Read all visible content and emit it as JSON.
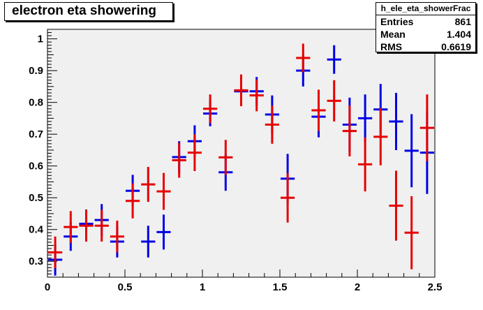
{
  "title": "electron eta showering",
  "stats": {
    "name": "h_ele_eta_showerFrac",
    "rows": [
      {
        "key": "Entries",
        "value": "861"
      },
      {
        "key": "Mean",
        "value": "1.404"
      },
      {
        "key": "RMS",
        "value": "0.6619"
      }
    ]
  },
  "colors": {
    "frame_fill": "#f0f0f0",
    "series_blue": "#0000e6",
    "series_red": "#e60000"
  },
  "chart_data": {
    "type": "scatter",
    "title": "electron eta showering",
    "xlabel": "",
    "ylabel": "",
    "xlim": [
      0,
      2.5
    ],
    "ylim": [
      0.25,
      1.03
    ],
    "x_ticks": [
      0,
      0.5,
      1,
      1.5,
      2,
      2.5
    ],
    "x_tick_labels": [
      "0",
      "0.5",
      "1",
      "1.5",
      "2",
      "2.5"
    ],
    "y_ticks": [
      0.3,
      0.4,
      0.5,
      0.6,
      0.7,
      0.8,
      0.9,
      1
    ],
    "y_tick_labels": [
      "0.3",
      "0.4",
      "0.5",
      "0.6",
      "0.7",
      "0.8",
      "0.9",
      "1"
    ],
    "grid": false,
    "series": [
      {
        "color": "#0000e6",
        "points": [
          {
            "x": 0.05,
            "y": 0.305,
            "xerr": 0.05,
            "yerr": 0.05
          },
          {
            "x": 0.15,
            "y": 0.378,
            "xerr": 0.05,
            "yerr": 0.045
          },
          {
            "x": 0.25,
            "y": 0.418,
            "xerr": 0.05,
            "yerr": 0.045
          },
          {
            "x": 0.35,
            "y": 0.43,
            "xerr": 0.05,
            "yerr": 0.05
          },
          {
            "x": 0.45,
            "y": 0.362,
            "xerr": 0.05,
            "yerr": 0.05
          },
          {
            "x": 0.55,
            "y": 0.522,
            "xerr": 0.05,
            "yerr": 0.05
          },
          {
            "x": 0.65,
            "y": 0.362,
            "xerr": 0.05,
            "yerr": 0.05
          },
          {
            "x": 0.75,
            "y": 0.392,
            "xerr": 0.05,
            "yerr": 0.055
          },
          {
            "x": 0.85,
            "y": 0.628,
            "xerr": 0.05,
            "yerr": 0.05
          },
          {
            "x": 0.95,
            "y": 0.678,
            "xerr": 0.05,
            "yerr": 0.05
          },
          {
            "x": 1.05,
            "y": 0.765,
            "xerr": 0.05,
            "yerr": 0.04
          },
          {
            "x": 1.15,
            "y": 0.58,
            "xerr": 0.05,
            "yerr": 0.058
          },
          {
            "x": 1.25,
            "y": 0.835,
            "xerr": 0.05,
            "yerr": 0.045
          },
          {
            "x": 1.35,
            "y": 0.835,
            "xerr": 0.05,
            "yerr": 0.045
          },
          {
            "x": 1.45,
            "y": 0.762,
            "xerr": 0.05,
            "yerr": 0.06
          },
          {
            "x": 1.55,
            "y": 0.56,
            "xerr": 0.05,
            "yerr": 0.078
          },
          {
            "x": 1.65,
            "y": 0.9,
            "xerr": 0.05,
            "yerr": 0.05
          },
          {
            "x": 1.75,
            "y": 0.755,
            "xerr": 0.05,
            "yerr": 0.065
          },
          {
            "x": 1.85,
            "y": 0.935,
            "xerr": 0.05,
            "yerr": 0.045
          },
          {
            "x": 1.95,
            "y": 0.73,
            "xerr": 0.05,
            "yerr": 0.085
          },
          {
            "x": 2.05,
            "y": 0.75,
            "xerr": 0.05,
            "yerr": 0.075
          },
          {
            "x": 2.15,
            "y": 0.778,
            "xerr": 0.05,
            "yerr": 0.08
          },
          {
            "x": 2.25,
            "y": 0.74,
            "xerr": 0.05,
            "yerr": 0.09
          },
          {
            "x": 2.35,
            "y": 0.648,
            "xerr": 0.05,
            "yerr": 0.115
          },
          {
            "x": 2.45,
            "y": 0.642,
            "xerr": 0.05,
            "yerr": 0.13
          }
        ]
      },
      {
        "color": "#e60000",
        "points": [
          {
            "x": 0.05,
            "y": 0.328,
            "xerr": 0.05,
            "yerr": 0.05
          },
          {
            "x": 0.15,
            "y": 0.408,
            "xerr": 0.05,
            "yerr": 0.05
          },
          {
            "x": 0.25,
            "y": 0.412,
            "xerr": 0.05,
            "yerr": 0.05
          },
          {
            "x": 0.35,
            "y": 0.412,
            "xerr": 0.05,
            "yerr": 0.05
          },
          {
            "x": 0.45,
            "y": 0.378,
            "xerr": 0.05,
            "yerr": 0.05
          },
          {
            "x": 0.55,
            "y": 0.49,
            "xerr": 0.05,
            "yerr": 0.055
          },
          {
            "x": 0.65,
            "y": 0.542,
            "xerr": 0.05,
            "yerr": 0.055
          },
          {
            "x": 0.75,
            "y": 0.52,
            "xerr": 0.05,
            "yerr": 0.058
          },
          {
            "x": 0.85,
            "y": 0.618,
            "xerr": 0.05,
            "yerr": 0.055
          },
          {
            "x": 0.95,
            "y": 0.642,
            "xerr": 0.05,
            "yerr": 0.058
          },
          {
            "x": 1.05,
            "y": 0.78,
            "xerr": 0.05,
            "yerr": 0.045
          },
          {
            "x": 1.15,
            "y": 0.627,
            "xerr": 0.05,
            "yerr": 0.055
          },
          {
            "x": 1.25,
            "y": 0.838,
            "xerr": 0.05,
            "yerr": 0.05
          },
          {
            "x": 1.35,
            "y": 0.822,
            "xerr": 0.05,
            "yerr": 0.05
          },
          {
            "x": 1.45,
            "y": 0.73,
            "xerr": 0.05,
            "yerr": 0.06
          },
          {
            "x": 1.55,
            "y": 0.5,
            "xerr": 0.05,
            "yerr": 0.078
          },
          {
            "x": 1.65,
            "y": 0.94,
            "xerr": 0.05,
            "yerr": 0.045
          },
          {
            "x": 1.75,
            "y": 0.775,
            "xerr": 0.05,
            "yerr": 0.065
          },
          {
            "x": 1.85,
            "y": 0.805,
            "xerr": 0.05,
            "yerr": 0.065
          },
          {
            "x": 1.95,
            "y": 0.71,
            "xerr": 0.05,
            "yerr": 0.08
          },
          {
            "x": 2.05,
            "y": 0.605,
            "xerr": 0.05,
            "yerr": 0.085
          },
          {
            "x": 2.15,
            "y": 0.692,
            "xerr": 0.05,
            "yerr": 0.09
          },
          {
            "x": 2.25,
            "y": 0.475,
            "xerr": 0.05,
            "yerr": 0.11
          },
          {
            "x": 2.35,
            "y": 0.39,
            "xerr": 0.05,
            "yerr": 0.115
          },
          {
            "x": 2.45,
            "y": 0.72,
            "xerr": 0.05,
            "yerr": 0.105
          }
        ]
      }
    ]
  }
}
